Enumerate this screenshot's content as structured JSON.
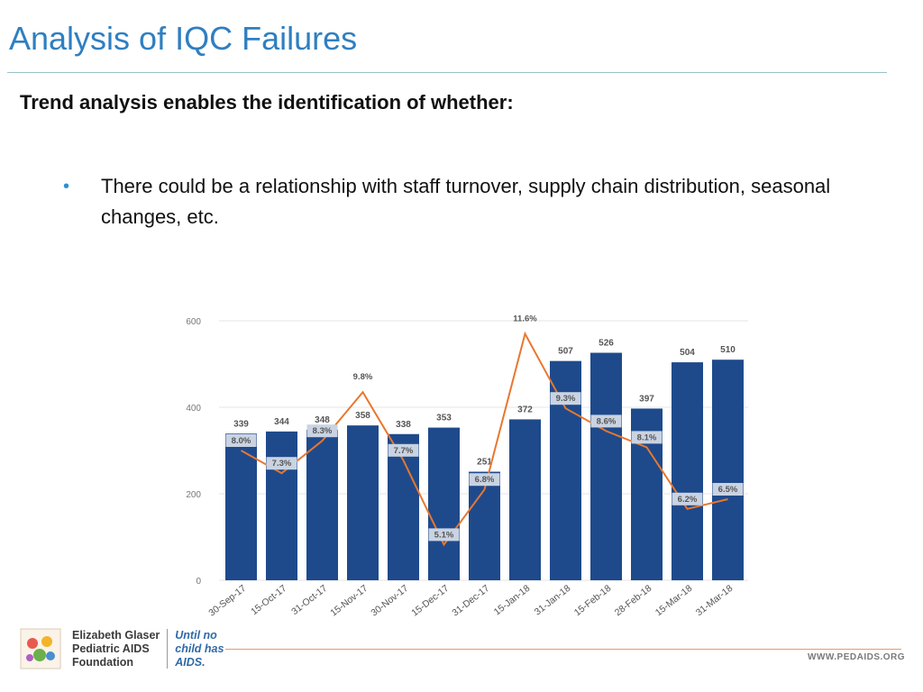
{
  "slide": {
    "title": "Analysis of IQC Failures",
    "subtitle": "Trend analysis enables the identification of whether:",
    "bullets": [
      {
        "marker": "•",
        "text": "There could be a relationship with staff turnover, supply chain distribution, seasonal changes, etc."
      }
    ]
  },
  "footer": {
    "org_name_lines": [
      "Elizabeth Glaser",
      "Pediatric AIDS",
      "Foundation"
    ],
    "tagline_lines": [
      "Until no",
      "child has",
      "AIDS."
    ],
    "website": "WWW.PEDAIDS.ORG"
  },
  "colors": {
    "title": "#2f7fc1",
    "bar": "#1e4a8c",
    "line": "#e8772e",
    "label_box": "#c9d3e2",
    "grid": "#e6e6e6"
  },
  "chart_data": {
    "type": "bar",
    "categories": [
      "30-Sep-17",
      "15-Oct-17",
      "31-Oct-17",
      "15-Nov-17",
      "30-Nov-17",
      "15-Dec-17",
      "31-Dec-17",
      "15-Jan-18",
      "31-Jan-18",
      "15-Feb-18",
      "28-Feb-18",
      "15-Mar-18",
      "31-Mar-18"
    ],
    "series": [
      {
        "kind": "bar",
        "values": [
          339,
          344,
          348,
          358,
          338,
          353,
          251,
          372,
          507,
          526,
          397,
          504,
          510
        ]
      },
      {
        "kind": "line",
        "values": [
          8.0,
          7.3,
          8.3,
          9.8,
          7.7,
          5.1,
          6.8,
          11.6,
          9.3,
          8.6,
          8.1,
          6.2,
          6.5
        ],
        "labels": [
          "8.0%",
          "7.3%",
          "8.3%",
          "9.8%",
          "7.7%",
          "5.1%",
          "6.8%",
          "11.6%",
          "9.3%",
          "8.6%",
          "8.1%",
          "6.2%",
          "6.5%"
        ]
      }
    ],
    "yticks": [
      0,
      200,
      400,
      600
    ],
    "ylim": [
      0,
      600
    ],
    "pct_range": [
      4.0,
      12.0
    ],
    "grid": true,
    "legend": "none"
  }
}
